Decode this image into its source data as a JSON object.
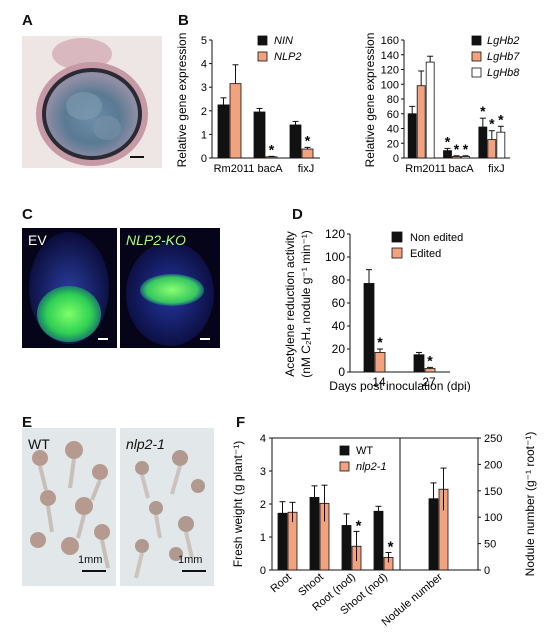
{
  "panels": {
    "A": {
      "label": "A"
    },
    "B": {
      "label": "B"
    },
    "C": {
      "label": "C",
      "left_label": "EV",
      "right_label": "NLP2-KO"
    },
    "D": {
      "label": "D"
    },
    "E": {
      "label": "E",
      "left_label": "WT",
      "right_label": "nlp2-1",
      "scale_left": "1mm",
      "scale_right": "1mm"
    },
    "F": {
      "label": "F"
    }
  },
  "colors": {
    "black": "#111111",
    "orange": "#f2a27e",
    "white": "#ffffff"
  },
  "chart_data": [
    {
      "id": "B-left",
      "type": "bar",
      "ylabel": "Relative gene expression",
      "ylim": [
        0,
        5
      ],
      "yticks": [
        "0",
        "1",
        "2",
        "3",
        "4",
        "5"
      ],
      "categories": [
        "Rm2011",
        "bacA",
        "fixJ"
      ],
      "series": [
        {
          "name": "NIN",
          "color": "#111111",
          "values": [
            2.25,
            1.95,
            1.4
          ],
          "errors": [
            0.3,
            0.15,
            0.15
          ],
          "stars": [
            false,
            false,
            false
          ]
        },
        {
          "name": "NLP2",
          "color": "#f2a27e",
          "values": [
            3.15,
            0.05,
            0.38
          ],
          "errors": [
            0.8,
            0.02,
            0.07
          ],
          "stars": [
            false,
            true,
            true
          ]
        }
      ]
    },
    {
      "id": "B-right",
      "type": "bar",
      "ylabel": "Relative gene expression",
      "ylim": [
        0,
        160
      ],
      "yticks": [
        "0",
        "20",
        "40",
        "60",
        "80",
        "100",
        "120",
        "140",
        "160"
      ],
      "categories": [
        "Rm2011",
        "bacA",
        "fixJ"
      ],
      "series": [
        {
          "name": "LgHb2",
          "color": "#111111",
          "values": [
            60,
            10,
            42
          ],
          "errors": [
            10,
            3,
            12
          ],
          "stars": [
            false,
            true,
            true
          ]
        },
        {
          "name": "LgHb7",
          "color": "#f2a27e",
          "values": [
            98,
            2,
            25
          ],
          "errors": [
            20,
            1,
            12
          ],
          "stars": [
            false,
            true,
            true
          ]
        },
        {
          "name": "LgHb8",
          "color": "#ffffff",
          "values": [
            130,
            2,
            35
          ],
          "errors": [
            8,
            1,
            8
          ],
          "stars": [
            false,
            true,
            true
          ]
        }
      ]
    },
    {
      "id": "D",
      "type": "bar",
      "ylabel": "Acetylene reduction activity",
      "ylabel_line2": "(nM C₂H₄ nodule g⁻¹ min⁻¹)",
      "xlabel": "Days post inoculation (dpi)",
      "ylim": [
        0,
        120
      ],
      "yticks": [
        "0",
        "20",
        "40",
        "60",
        "80",
        "100",
        "120"
      ],
      "categories": [
        "14",
        "27"
      ],
      "series": [
        {
          "name": "Non edited",
          "color": "#111111",
          "values": [
            77,
            15
          ],
          "errors": [
            12,
            2
          ],
          "stars": [
            false,
            false
          ]
        },
        {
          "name": "Edited",
          "color": "#f2a27e",
          "values": [
            17,
            3
          ],
          "errors": [
            3,
            1
          ],
          "stars": [
            true,
            true
          ]
        }
      ]
    },
    {
      "id": "F",
      "type": "bar",
      "ylabel": "Fresh weight (g plant⁻¹)",
      "ylabel_right": "Nodule number (g⁻¹ root⁻¹)",
      "ylim": [
        0,
        4
      ],
      "yticks": [
        "0",
        "1",
        "2",
        "3",
        "4"
      ],
      "ylim_right": [
        0,
        250
      ],
      "yticks_right": [
        "0",
        "50",
        "100",
        "150",
        "200",
        "250"
      ],
      "categories": [
        "Root",
        "Shoot",
        "Root (nod)",
        "Shoot (nod)",
        "Nodule number"
      ],
      "series": [
        {
          "name": "WT",
          "color": "#111111",
          "values": [
            1.72,
            2.2,
            1.35,
            1.78,
            135
          ],
          "errors": [
            0.35,
            0.35,
            0.35,
            0.15,
            30
          ],
          "stars": [
            false,
            false,
            false,
            false,
            false
          ]
        },
        {
          "name": "nlp2-1",
          "color": "#f2a27e",
          "values": [
            1.75,
            2.02,
            0.72,
            0.38,
            153
          ],
          "errors": [
            0.3,
            0.55,
            0.45,
            0.15,
            40
          ],
          "stars": [
            false,
            false,
            true,
            true,
            false
          ]
        }
      ]
    }
  ]
}
